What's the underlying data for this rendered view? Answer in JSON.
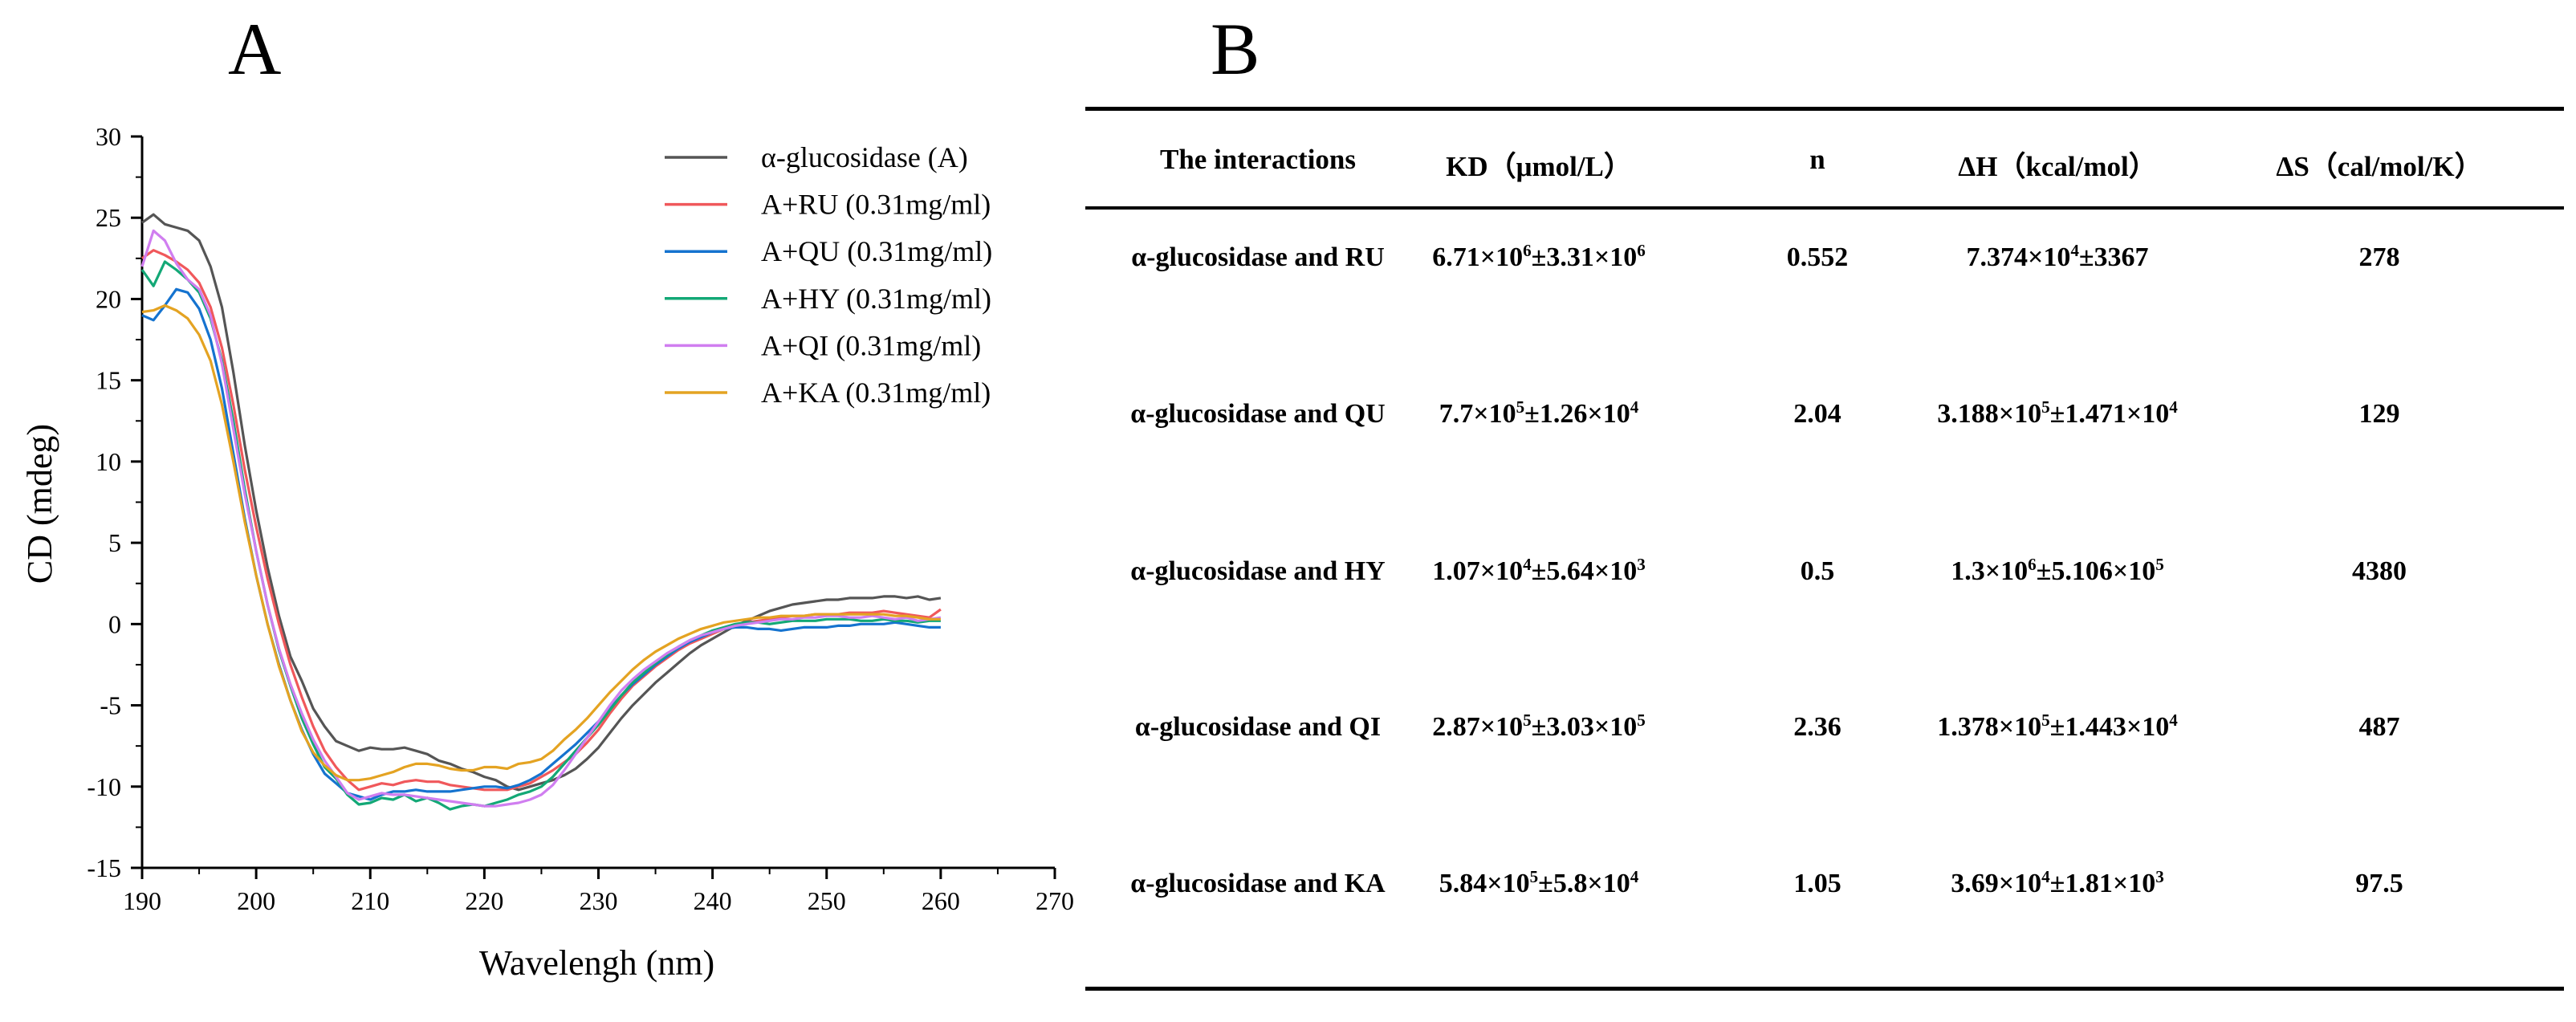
{
  "panel_labels": {
    "a": "A",
    "b": "B"
  },
  "chart_data": {
    "type": "line",
    "title": "",
    "xlabel": "Wavelengh (nm)",
    "ylabel": "CD (mdeg)",
    "xlim": [
      190,
      270
    ],
    "ylim": [
      -15,
      30
    ],
    "xticks": [
      190,
      200,
      210,
      220,
      230,
      240,
      250,
      260,
      270
    ],
    "yticks": [
      -15,
      -10,
      -5,
      0,
      5,
      10,
      15,
      20,
      25,
      30
    ],
    "grid": false,
    "legend_position": "top-right",
    "series": [
      {
        "name": "α-glucosidase (A)",
        "color": "#555555",
        "x": [
          190,
          191,
          192,
          193,
          194,
          195,
          196,
          197,
          198,
          199,
          200,
          201,
          202,
          203,
          204,
          205,
          206,
          207,
          208,
          209,
          210,
          211,
          212,
          213,
          214,
          215,
          216,
          217,
          218,
          219,
          220,
          221,
          222,
          223,
          224,
          225,
          226,
          227,
          228,
          229,
          230,
          231,
          232,
          233,
          234,
          235,
          236,
          237,
          238,
          239,
          240,
          241,
          242,
          243,
          244,
          245,
          246,
          247,
          248,
          249,
          250,
          251,
          252,
          253,
          254,
          255,
          256,
          257,
          258,
          259,
          260
        ],
        "y": [
          24.7,
          25.2,
          24.6,
          24.4,
          24.2,
          23.6,
          22.0,
          19.5,
          15.5,
          11.0,
          7.0,
          3.5,
          0.5,
          -2.0,
          -3.5,
          -5.2,
          -6.3,
          -7.2,
          -7.5,
          -7.8,
          -7.6,
          -7.7,
          -7.7,
          -7.6,
          -7.8,
          -8.0,
          -8.4,
          -8.6,
          -8.9,
          -9.1,
          -9.4,
          -9.6,
          -10.0,
          -10.2,
          -10.0,
          -9.8,
          -9.6,
          -9.3,
          -8.9,
          -8.3,
          -7.6,
          -6.7,
          -5.8,
          -5.0,
          -4.3,
          -3.6,
          -3.0,
          -2.4,
          -1.8,
          -1.3,
          -0.9,
          -0.5,
          -0.1,
          0.2,
          0.5,
          0.8,
          1.0,
          1.2,
          1.3,
          1.4,
          1.5,
          1.5,
          1.6,
          1.6,
          1.6,
          1.7,
          1.7,
          1.6,
          1.7,
          1.5,
          1.6
        ]
      },
      {
        "name": "A+RU (0.31mg/ml)",
        "color": "#f0585b",
        "x": [
          190,
          191,
          192,
          193,
          194,
          195,
          196,
          197,
          198,
          199,
          200,
          201,
          202,
          203,
          204,
          205,
          206,
          207,
          208,
          209,
          210,
          211,
          212,
          213,
          214,
          215,
          216,
          217,
          218,
          219,
          220,
          221,
          222,
          223,
          224,
          225,
          226,
          227,
          228,
          229,
          230,
          231,
          232,
          233,
          234,
          235,
          236,
          237,
          238,
          239,
          240,
          241,
          242,
          243,
          244,
          245,
          246,
          247,
          248,
          249,
          250,
          251,
          252,
          253,
          254,
          255,
          256,
          257,
          258,
          259,
          260
        ],
        "y": [
          22.5,
          23.0,
          22.7,
          22.3,
          21.8,
          21.0,
          19.5,
          17.0,
          13.5,
          9.5,
          6.0,
          2.8,
          0.0,
          -2.5,
          -4.5,
          -6.3,
          -7.8,
          -8.8,
          -9.6,
          -10.2,
          -10.0,
          -9.8,
          -9.9,
          -9.7,
          -9.6,
          -9.7,
          -9.7,
          -9.9,
          -10.0,
          -10.1,
          -10.2,
          -10.2,
          -10.2,
          -10.0,
          -9.8,
          -9.4,
          -9.0,
          -8.5,
          -8.0,
          -7.3,
          -6.5,
          -5.5,
          -4.6,
          -3.8,
          -3.2,
          -2.6,
          -2.1,
          -1.6,
          -1.2,
          -0.9,
          -0.6,
          -0.3,
          -0.1,
          0.1,
          0.2,
          0.3,
          0.4,
          0.5,
          0.5,
          0.6,
          0.6,
          0.6,
          0.7,
          0.7,
          0.7,
          0.8,
          0.7,
          0.6,
          0.5,
          0.4,
          0.9
        ]
      },
      {
        "name": "A+QU (0.31mg/ml)",
        "color": "#1573cf",
        "x": [
          190,
          191,
          192,
          193,
          194,
          195,
          196,
          197,
          198,
          199,
          200,
          201,
          202,
          203,
          204,
          205,
          206,
          207,
          208,
          209,
          210,
          211,
          212,
          213,
          214,
          215,
          216,
          217,
          218,
          219,
          220,
          221,
          222,
          223,
          224,
          225,
          226,
          227,
          228,
          229,
          230,
          231,
          232,
          233,
          234,
          235,
          236,
          237,
          238,
          239,
          240,
          241,
          242,
          243,
          244,
          245,
          246,
          247,
          248,
          249,
          250,
          251,
          252,
          253,
          254,
          255,
          256,
          257,
          258,
          259,
          260
        ],
        "y": [
          19.0,
          18.7,
          19.6,
          20.6,
          20.4,
          19.4,
          17.5,
          14.5,
          10.5,
          6.5,
          3.0,
          0.0,
          -2.5,
          -4.7,
          -6.5,
          -8.0,
          -9.2,
          -9.8,
          -10.4,
          -10.6,
          -10.8,
          -10.5,
          -10.3,
          -10.3,
          -10.2,
          -10.3,
          -10.3,
          -10.3,
          -10.2,
          -10.1,
          -10.0,
          -10.0,
          -10.1,
          -9.9,
          -9.6,
          -9.2,
          -8.6,
          -8.0,
          -7.4,
          -6.7,
          -6.0,
          -5.2,
          -4.4,
          -3.7,
          -3.1,
          -2.5,
          -2.0,
          -1.5,
          -1.1,
          -0.8,
          -0.5,
          -0.3,
          -0.2,
          -0.2,
          -0.3,
          -0.3,
          -0.4,
          -0.3,
          -0.2,
          -0.2,
          -0.2,
          -0.1,
          -0.1,
          0.0,
          0.0,
          0.0,
          0.1,
          0.0,
          -0.1,
          -0.2,
          -0.2
        ]
      },
      {
        "name": "A+HY (0.31mg/ml)",
        "color": "#13a876",
        "x": [
          190,
          191,
          192,
          193,
          194,
          195,
          196,
          197,
          198,
          199,
          200,
          201,
          202,
          203,
          204,
          205,
          206,
          207,
          208,
          209,
          210,
          211,
          212,
          213,
          214,
          215,
          216,
          217,
          218,
          219,
          220,
          221,
          222,
          223,
          224,
          225,
          226,
          227,
          228,
          229,
          230,
          231,
          232,
          233,
          234,
          235,
          236,
          237,
          238,
          239,
          240,
          241,
          242,
          243,
          244,
          245,
          246,
          247,
          248,
          249,
          250,
          251,
          252,
          253,
          254,
          255,
          256,
          257,
          258,
          259,
          260
        ],
        "y": [
          21.8,
          20.8,
          22.3,
          21.8,
          21.2,
          20.4,
          18.8,
          16.2,
          12.5,
          8.3,
          4.5,
          1.2,
          -1.6,
          -3.8,
          -5.8,
          -7.4,
          -8.8,
          -9.5,
          -10.5,
          -11.1,
          -11.0,
          -10.7,
          -10.8,
          -10.5,
          -10.9,
          -10.7,
          -11.0,
          -11.4,
          -11.2,
          -11.1,
          -11.2,
          -11.0,
          -10.8,
          -10.5,
          -10.3,
          -10.0,
          -9.4,
          -8.6,
          -7.8,
          -7.0,
          -6.2,
          -5.3,
          -4.4,
          -3.6,
          -3.0,
          -2.4,
          -1.9,
          -1.4,
          -1.0,
          -0.7,
          -0.4,
          -0.2,
          0.0,
          0.1,
          0.1,
          0.0,
          0.1,
          0.2,
          0.2,
          0.2,
          0.3,
          0.3,
          0.3,
          0.2,
          0.2,
          0.3,
          0.2,
          0.2,
          0.1,
          0.2,
          0.2
        ]
      },
      {
        "name": "A+QI   (0.31mg/ml)",
        "color": "#d07ef0",
        "x": [
          190,
          191,
          192,
          193,
          194,
          195,
          196,
          197,
          198,
          199,
          200,
          201,
          202,
          203,
          204,
          205,
          206,
          207,
          208,
          209,
          210,
          211,
          212,
          213,
          214,
          215,
          216,
          217,
          218,
          219,
          220,
          221,
          222,
          223,
          224,
          225,
          226,
          227,
          228,
          229,
          230,
          231,
          232,
          233,
          234,
          235,
          236,
          237,
          238,
          239,
          240,
          241,
          242,
          243,
          244,
          245,
          246,
          247,
          248,
          249,
          250,
          251,
          252,
          253,
          254,
          255,
          256,
          257,
          258,
          259,
          260
        ],
        "y": [
          22.0,
          24.2,
          23.6,
          22.2,
          21.2,
          20.6,
          19.0,
          16.0,
          12.0,
          8.0,
          4.5,
          1.2,
          -1.5,
          -3.7,
          -5.5,
          -7.1,
          -8.4,
          -9.4,
          -10.4,
          -10.8,
          -10.6,
          -10.4,
          -10.5,
          -10.5,
          -10.6,
          -10.7,
          -10.8,
          -10.9,
          -11.0,
          -11.1,
          -11.2,
          -11.2,
          -11.1,
          -11.0,
          -10.8,
          -10.5,
          -9.9,
          -9.0,
          -8.0,
          -7.0,
          -6.0,
          -5.0,
          -4.1,
          -3.4,
          -2.8,
          -2.3,
          -1.8,
          -1.4,
          -1.0,
          -0.7,
          -0.5,
          -0.3,
          -0.1,
          0.0,
          0.1,
          0.2,
          0.3,
          0.3,
          0.4,
          0.4,
          0.5,
          0.5,
          0.4,
          0.4,
          0.5,
          0.4,
          0.3,
          0.4,
          0.2,
          0.3,
          0.4
        ]
      },
      {
        "name": "A+KA (0.31mg/ml)",
        "color": "#e4a322",
        "x": [
          190,
          191,
          192,
          193,
          194,
          195,
          196,
          197,
          198,
          199,
          200,
          201,
          202,
          203,
          204,
          205,
          206,
          207,
          208,
          209,
          210,
          211,
          212,
          213,
          214,
          215,
          216,
          217,
          218,
          219,
          220,
          221,
          222,
          223,
          224,
          225,
          226,
          227,
          228,
          229,
          230,
          231,
          232,
          233,
          234,
          235,
          236,
          237,
          238,
          239,
          240,
          241,
          242,
          243,
          244,
          245,
          246,
          247,
          248,
          249,
          250,
          251,
          252,
          253,
          254,
          255,
          256,
          257,
          258,
          259,
          260
        ],
        "y": [
          19.2,
          19.3,
          19.6,
          19.3,
          18.8,
          17.8,
          16.2,
          13.5,
          10.0,
          6.3,
          3.0,
          0.0,
          -2.6,
          -4.7,
          -6.6,
          -7.9,
          -8.7,
          -9.3,
          -9.6,
          -9.6,
          -9.5,
          -9.3,
          -9.1,
          -8.8,
          -8.6,
          -8.6,
          -8.7,
          -8.9,
          -9.0,
          -9.0,
          -8.8,
          -8.8,
          -8.9,
          -8.6,
          -8.5,
          -8.3,
          -7.8,
          -7.1,
          -6.5,
          -5.8,
          -5.0,
          -4.2,
          -3.5,
          -2.8,
          -2.2,
          -1.7,
          -1.3,
          -0.9,
          -0.6,
          -0.3,
          -0.1,
          0.1,
          0.2,
          0.3,
          0.4,
          0.4,
          0.5,
          0.5,
          0.5,
          0.6,
          0.6,
          0.6,
          0.6,
          0.6,
          0.6,
          0.6,
          0.5,
          0.5,
          0.4,
          0.3,
          0.3
        ]
      }
    ]
  },
  "table": {
    "headers": [
      "The interactions",
      "KD（μmol/L）",
      "n",
      "ΔH（kcal/mol）",
      "ΔS（cal/mol/K）"
    ],
    "rows": [
      [
        "α-glucosidase and RU",
        "6.71×10⁶±3.31×10⁶",
        "0.552",
        "7.374×10⁴±3367",
        "278"
      ],
      [
        "α-glucosidase and QU",
        "7.7×10⁵±1.26×10⁴",
        "2.04",
        "3.188×10⁵±1.471×10⁴",
        "129"
      ],
      [
        "α-glucosidase and HY",
        "1.07×10⁴±5.64×10³",
        "0.5",
        "1.3×10⁶±5.106×10⁵",
        "4380"
      ],
      [
        "α-glucosidase and QI",
        "2.87×10⁵±3.03×10⁵",
        "2.36",
        "1.378×10⁵±1.443×10⁴",
        "487"
      ],
      [
        "α-glucosidase and KA",
        "5.84×10⁵±5.8×10⁴",
        "1.05",
        "3.69×10⁴±1.81×10³",
        "97.5"
      ]
    ]
  }
}
